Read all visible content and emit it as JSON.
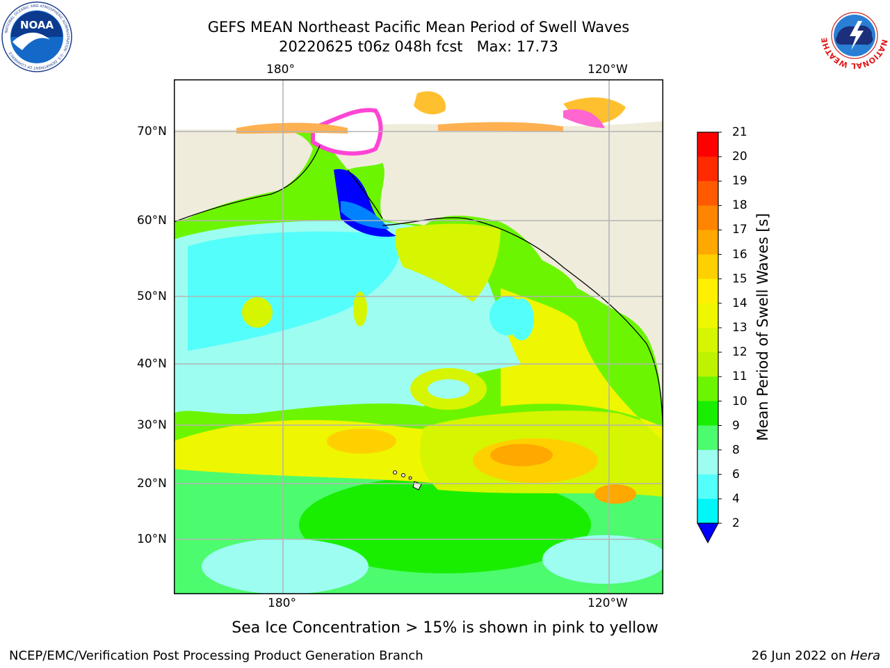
{
  "title": {
    "line1": "GEFS MEAN Northeast Pacific Mean Period of Swell Waves",
    "line2": "20220625 t06z 048h fcst   Max: 17.73"
  },
  "map": {
    "top_lon_labels": [
      "180°",
      "120°W"
    ],
    "bottom_lon_labels": [
      "180°",
      "120°W"
    ],
    "lat_labels": [
      "70°N",
      "60°N",
      "50°N",
      "40°N",
      "30°N",
      "20°N",
      "10°N"
    ],
    "land_color": "#efecdc",
    "grid_color": "#b4b4b4"
  },
  "colorbar": {
    "label": "Mean Period of Swell Waves [s]",
    "ticks": [
      "21",
      "20",
      "19",
      "18",
      "17",
      "16",
      "15",
      "14",
      "13",
      "12",
      "11",
      "10",
      "9",
      "8",
      "6",
      "4",
      "2"
    ],
    "colors": [
      "#ff0000",
      "#ff2a00",
      "#ff5a00",
      "#ff8400",
      "#ffa800",
      "#ffd000",
      "#ffef00",
      "#eef600",
      "#d5f500",
      "#bdf300",
      "#6cf500",
      "#19ee00",
      "#4dfb6e",
      "#9dfdf1",
      "#54fefb",
      "#00f6f7",
      "#0fd2ff",
      "#0082ff"
    ],
    "underflow_color": "#0000ff"
  },
  "ice_note": "Sea Ice Concentration > 15% is shown in pink to yellow",
  "footer": {
    "left": "NCEP/EMC/Verification Post Processing Product Generation Branch",
    "date": "26 Jun 2022 on ",
    "machine": "Hera"
  },
  "logos": {
    "noaa_text": "NOAA",
    "noaa_ring_text": "NATIONAL OCEANIC AND ATMOSPHERIC ADMINISTRATION · U.S. DEPARTMENT OF COMMERCE",
    "nws_ring_text": "NATIONAL WEATHER SERVICE"
  }
}
